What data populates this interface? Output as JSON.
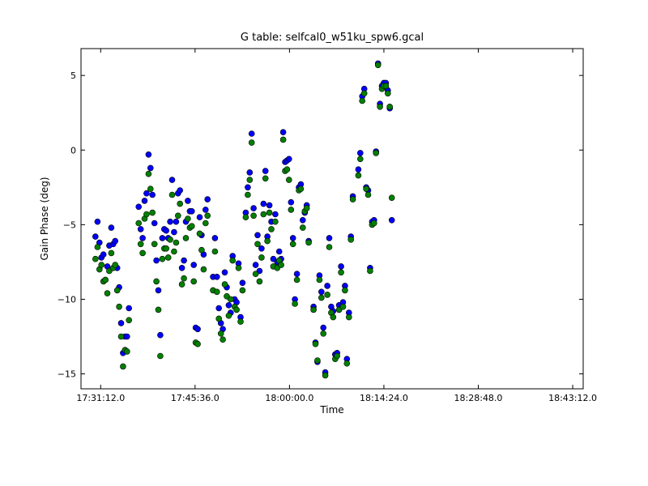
{
  "chart_data": {
    "type": "scatter",
    "title": "G table: selfcal0_w51ku_spw6.gcal",
    "xlabel": "Time",
    "ylabel": "Gain Phase (deg)",
    "xlim": [
      "17:28:12",
      "18:44:48"
    ],
    "ylim": [
      -16,
      6.8
    ],
    "x_ticks": [
      "17:31:12.0",
      "17:45:36.0",
      "18:00:00.0",
      "18:14:24.0",
      "18:28:48.0",
      "18:43:12.0"
    ],
    "y_ticks": [
      5,
      0,
      -5,
      -10,
      -15
    ],
    "grid": false,
    "legend": "none",
    "series": [
      {
        "color": "#0000ff",
        "points": [
          [
            "17:30:24",
            -5.8
          ],
          [
            "17:30:43",
            -4.8
          ],
          [
            "17:31:01",
            -6.2
          ],
          [
            "17:31:19",
            -7.2
          ],
          [
            "17:31:37",
            -7.0
          ],
          [
            "17:31:55",
            -8.7
          ],
          [
            "17:32:13",
            -7.8
          ],
          [
            "17:32:31",
            -6.4
          ],
          [
            "17:32:49",
            -5.2
          ],
          [
            "17:33:07",
            -6.3
          ],
          [
            "17:33:25",
            -6.1
          ],
          [
            "17:33:43",
            -7.9
          ],
          [
            "17:34:01",
            -9.2
          ],
          [
            "17:34:19",
            -11.6
          ],
          [
            "17:34:37",
            -13.6
          ],
          [
            "17:34:55",
            -12.5
          ],
          [
            "17:35:13",
            -12.5
          ],
          [
            "17:35:31",
            -10.6
          ],
          [
            "17:37:00",
            -3.8
          ],
          [
            "17:37:18",
            -5.3
          ],
          [
            "17:37:36",
            -5.9
          ],
          [
            "17:37:54",
            -3.4
          ],
          [
            "17:38:12",
            -2.9
          ],
          [
            "17:38:30",
            -0.3
          ],
          [
            "17:38:48",
            -1.2
          ],
          [
            "17:39:06",
            -3.0
          ],
          [
            "17:39:24",
            -4.9
          ],
          [
            "17:39:42",
            -7.4
          ],
          [
            "17:40:00",
            -9.4
          ],
          [
            "17:40:18",
            -12.4
          ],
          [
            "17:40:36",
            -5.9
          ],
          [
            "17:40:54",
            -5.3
          ],
          [
            "17:41:12",
            -5.4
          ],
          [
            "17:41:30",
            -5.9
          ],
          [
            "17:41:48",
            -4.8
          ],
          [
            "17:42:06",
            -2.0
          ],
          [
            "17:42:24",
            -5.5
          ],
          [
            "17:42:42",
            -4.8
          ],
          [
            "17:43:00",
            -2.9
          ],
          [
            "17:43:18",
            -2.7
          ],
          [
            "17:43:36",
            -7.9
          ],
          [
            "17:43:54",
            -7.4
          ],
          [
            "17:44:12",
            -4.8
          ],
          [
            "17:44:30",
            -3.4
          ],
          [
            "17:44:48",
            -4.1
          ],
          [
            "17:45:06",
            -4.1
          ],
          [
            "17:45:24",
            -7.7
          ],
          [
            "17:45:42",
            -11.9
          ],
          [
            "17:46:00",
            -12.0
          ],
          [
            "17:46:18",
            -4.5
          ],
          [
            "17:46:36",
            -5.7
          ],
          [
            "17:46:54",
            -7.0
          ],
          [
            "17:47:12",
            -4.0
          ],
          [
            "17:47:30",
            -3.3
          ],
          [
            "17:48:20",
            -8.5
          ],
          [
            "17:48:38",
            -5.9
          ],
          [
            "17:48:56",
            -8.5
          ],
          [
            "17:49:14",
            -10.6
          ],
          [
            "17:49:32",
            -11.6
          ],
          [
            "17:49:50",
            -12.0
          ],
          [
            "17:50:08",
            -8.2
          ],
          [
            "17:50:26",
            -9.2
          ],
          [
            "17:50:44",
            -10.4
          ],
          [
            "17:51:02",
            -10.9
          ],
          [
            "17:51:20",
            -7.1
          ],
          [
            "17:51:38",
            -10.0
          ],
          [
            "17:51:56",
            -10.2
          ],
          [
            "17:52:14",
            -7.6
          ],
          [
            "17:52:32",
            -11.2
          ],
          [
            "17:52:50",
            -8.9
          ],
          [
            "17:53:20",
            -4.2
          ],
          [
            "17:53:38",
            -2.5
          ],
          [
            "17:53:56",
            -1.5
          ],
          [
            "17:54:14",
            1.1
          ],
          [
            "17:54:32",
            -3.9
          ],
          [
            "17:54:50",
            -7.7
          ],
          [
            "17:55:08",
            -5.7
          ],
          [
            "17:55:26",
            -8.1
          ],
          [
            "17:55:44",
            -6.6
          ],
          [
            "17:56:02",
            -3.6
          ],
          [
            "17:56:20",
            -1.4
          ],
          [
            "17:56:38",
            -5.8
          ],
          [
            "17:56:56",
            -3.7
          ],
          [
            "17:57:14",
            -4.8
          ],
          [
            "17:57:32",
            -7.3
          ],
          [
            "17:57:50",
            -4.3
          ],
          [
            "17:58:08",
            -7.5
          ],
          [
            "17:58:26",
            -6.8
          ],
          [
            "17:58:44",
            -7.3
          ],
          [
            "17:59:02",
            1.2
          ],
          [
            "17:59:20",
            -0.8
          ],
          [
            "17:59:38",
            -0.7
          ],
          [
            "17:59:56",
            -0.6
          ],
          [
            "18:00:14",
            -3.5
          ],
          [
            "18:00:32",
            -5.9
          ],
          [
            "18:00:50",
            -10.0
          ],
          [
            "18:01:08",
            -8.3
          ],
          [
            "18:01:26",
            -2.5
          ],
          [
            "18:01:44",
            -2.3
          ],
          [
            "18:02:02",
            -4.7
          ],
          [
            "18:02:20",
            -4.2
          ],
          [
            "18:02:38",
            -3.7
          ],
          [
            "18:02:56",
            -6.1
          ],
          [
            "18:03:40",
            -10.5
          ],
          [
            "18:03:58",
            -12.9
          ],
          [
            "18:04:16",
            -14.2
          ],
          [
            "18:04:34",
            -8.4
          ],
          [
            "18:04:52",
            -9.5
          ],
          [
            "18:05:10",
            -11.9
          ],
          [
            "18:05:28",
            -14.9
          ],
          [
            "18:05:46",
            -9.1
          ],
          [
            "18:06:04",
            -5.9
          ],
          [
            "18:06:22",
            -10.5
          ],
          [
            "18:06:40",
            -10.8
          ],
          [
            "18:06:58",
            -13.7
          ],
          [
            "18:07:16",
            -13.6
          ],
          [
            "18:07:34",
            -10.4
          ],
          [
            "18:07:52",
            -7.8
          ],
          [
            "18:08:10",
            -10.2
          ],
          [
            "18:08:28",
            -9.1
          ],
          [
            "18:08:46",
            -14.0
          ],
          [
            "18:09:04",
            -10.9
          ],
          [
            "18:09:22",
            -5.8
          ],
          [
            "18:09:40",
            -3.1
          ],
          [
            "18:10:30",
            -1.3
          ],
          [
            "18:10:48",
            -0.2
          ],
          [
            "18:11:06",
            3.6
          ],
          [
            "18:11:24",
            4.1
          ],
          [
            "18:11:42",
            -2.5
          ],
          [
            "18:12:00",
            -2.7
          ],
          [
            "18:12:18",
            -7.9
          ],
          [
            "18:12:36",
            -4.8
          ],
          [
            "18:12:54",
            -4.7
          ],
          [
            "18:13:12",
            -0.1
          ],
          [
            "18:13:30",
            5.8
          ],
          [
            "18:13:48",
            3.1
          ],
          [
            "18:14:06",
            4.3
          ],
          [
            "18:14:24",
            4.5
          ],
          [
            "18:14:42",
            4.5
          ],
          [
            "18:15:00",
            4.0
          ],
          [
            "18:15:18",
            2.8
          ],
          [
            "18:15:36",
            -4.7
          ]
        ]
      },
      {
        "color": "#008000",
        "points": [
          [
            "17:30:24",
            -7.3
          ],
          [
            "17:30:43",
            -6.5
          ],
          [
            "17:31:01",
            -8.0
          ],
          [
            "17:31:19",
            -7.7
          ],
          [
            "17:31:37",
            -8.8
          ],
          [
            "17:31:55",
            -8.7
          ],
          [
            "17:32:13",
            -9.6
          ],
          [
            "17:32:31",
            -8.1
          ],
          [
            "17:32:49",
            -6.9
          ],
          [
            "17:33:07",
            -7.9
          ],
          [
            "17:33:25",
            -7.7
          ],
          [
            "17:33:43",
            -9.4
          ],
          [
            "17:34:01",
            -10.5
          ],
          [
            "17:34:19",
            -12.5
          ],
          [
            "17:34:37",
            -14.5
          ],
          [
            "17:34:55",
            -13.4
          ],
          [
            "17:35:13",
            -13.5
          ],
          [
            "17:35:31",
            -11.4
          ],
          [
            "17:37:00",
            -4.9
          ],
          [
            "17:37:18",
            -6.3
          ],
          [
            "17:37:36",
            -6.9
          ],
          [
            "17:37:54",
            -4.6
          ],
          [
            "17:38:12",
            -4.3
          ],
          [
            "17:38:30",
            -1.6
          ],
          [
            "17:38:48",
            -2.6
          ],
          [
            "17:39:06",
            -4.2
          ],
          [
            "17:39:24",
            -6.3
          ],
          [
            "17:39:42",
            -8.8
          ],
          [
            "17:40:00",
            -10.7
          ],
          [
            "17:40:18",
            -13.8
          ],
          [
            "17:40:36",
            -7.3
          ],
          [
            "17:40:54",
            -6.6
          ],
          [
            "17:41:12",
            -6.6
          ],
          [
            "17:41:30",
            -7.2
          ],
          [
            "17:41:48",
            -6.0
          ],
          [
            "17:42:06",
            -3.0
          ],
          [
            "17:42:24",
            -6.8
          ],
          [
            "17:42:42",
            -6.2
          ],
          [
            "17:43:00",
            -4.4
          ],
          [
            "17:43:18",
            -3.6
          ],
          [
            "17:43:36",
            -9.0
          ],
          [
            "17:43:54",
            -8.6
          ],
          [
            "17:44:12",
            -5.9
          ],
          [
            "17:44:30",
            -4.6
          ],
          [
            "17:44:48",
            -5.2
          ],
          [
            "17:45:06",
            -5.1
          ],
          [
            "17:45:24",
            -8.8
          ],
          [
            "17:45:42",
            -12.9
          ],
          [
            "17:46:00",
            -13.0
          ],
          [
            "17:46:18",
            -5.6
          ],
          [
            "17:46:36",
            -6.7
          ],
          [
            "17:46:54",
            -8.0
          ],
          [
            "17:47:12",
            -4.9
          ],
          [
            "17:47:30",
            -4.4
          ],
          [
            "17:48:20",
            -9.4
          ],
          [
            "17:48:38",
            -6.8
          ],
          [
            "17:48:56",
            -9.5
          ],
          [
            "17:49:14",
            -11.3
          ],
          [
            "17:49:32",
            -12.3
          ],
          [
            "17:49:50",
            -12.7
          ],
          [
            "17:50:08",
            -9.0
          ],
          [
            "17:50:26",
            -9.8
          ],
          [
            "17:50:44",
            -11.1
          ],
          [
            "17:51:02",
            -10.0
          ],
          [
            "17:51:20",
            -7.4
          ],
          [
            "17:51:38",
            -10.5
          ],
          [
            "17:51:56",
            -10.7
          ],
          [
            "17:52:14",
            -7.9
          ],
          [
            "17:52:32",
            -11.5
          ],
          [
            "17:52:50",
            -9.4
          ],
          [
            "17:53:20",
            -4.5
          ],
          [
            "17:53:38",
            -3.0
          ],
          [
            "17:53:56",
            -2.0
          ],
          [
            "17:54:14",
            0.5
          ],
          [
            "17:54:32",
            -4.4
          ],
          [
            "17:54:50",
            -8.3
          ],
          [
            "17:55:08",
            -6.3
          ],
          [
            "17:55:26",
            -8.8
          ],
          [
            "17:55:44",
            -7.2
          ],
          [
            "17:56:02",
            -4.3
          ],
          [
            "17:56:20",
            -1.9
          ],
          [
            "17:56:38",
            -6.1
          ],
          [
            "17:56:56",
            -4.2
          ],
          [
            "17:57:14",
            -5.3
          ],
          [
            "17:57:32",
            -7.8
          ],
          [
            "17:57:50",
            -4.8
          ],
          [
            "17:58:08",
            -7.9
          ],
          [
            "17:58:26",
            -7.4
          ],
          [
            "17:58:44",
            -7.7
          ],
          [
            "17:59:02",
            0.7
          ],
          [
            "17:59:20",
            -1.4
          ],
          [
            "17:59:38",
            -1.3
          ],
          [
            "17:59:56",
            -2.0
          ],
          [
            "18:00:14",
            -4.0
          ],
          [
            "18:00:32",
            -6.3
          ],
          [
            "18:00:50",
            -10.3
          ],
          [
            "18:01:08",
            -8.7
          ],
          [
            "18:01:26",
            -2.7
          ],
          [
            "18:01:44",
            -2.6
          ],
          [
            "18:02:02",
            -5.2
          ],
          [
            "18:02:20",
            -4.1
          ],
          [
            "18:02:38",
            -3.9
          ],
          [
            "18:02:56",
            -6.2
          ],
          [
            "18:03:40",
            -10.7
          ],
          [
            "18:03:58",
            -13.0
          ],
          [
            "18:04:16",
            -14.1
          ],
          [
            "18:04:34",
            -8.7
          ],
          [
            "18:04:52",
            -9.9
          ],
          [
            "18:05:10",
            -12.3
          ],
          [
            "18:05:28",
            -15.1
          ],
          [
            "18:05:46",
            -9.7
          ],
          [
            "18:06:04",
            -6.5
          ],
          [
            "18:06:22",
            -10.9
          ],
          [
            "18:06:40",
            -11.2
          ],
          [
            "18:06:58",
            -14.0
          ],
          [
            "18:07:16",
            -13.8
          ],
          [
            "18:07:34",
            -10.7
          ],
          [
            "18:07:52",
            -8.2
          ],
          [
            "18:08:10",
            -10.5
          ],
          [
            "18:08:28",
            -9.4
          ],
          [
            "18:08:46",
            -14.3
          ],
          [
            "18:09:04",
            -11.2
          ],
          [
            "18:09:22",
            -6.0
          ],
          [
            "18:09:40",
            -3.3
          ],
          [
            "18:10:30",
            -1.7
          ],
          [
            "18:10:48",
            -0.6
          ],
          [
            "18:11:06",
            3.3
          ],
          [
            "18:11:24",
            3.8
          ],
          [
            "18:11:42",
            -2.6
          ],
          [
            "18:12:00",
            -3.0
          ],
          [
            "18:12:18",
            -8.1
          ],
          [
            "18:12:36",
            -5.0
          ],
          [
            "18:12:54",
            -4.9
          ],
          [
            "18:13:12",
            -0.2
          ],
          [
            "18:13:30",
            5.7
          ],
          [
            "18:13:48",
            2.9
          ],
          [
            "18:14:06",
            4.1
          ],
          [
            "18:14:24",
            4.3
          ],
          [
            "18:14:42",
            4.3
          ],
          [
            "18:15:00",
            3.8
          ],
          [
            "18:15:18",
            2.9
          ],
          [
            "18:15:36",
            -3.2
          ]
        ]
      }
    ]
  }
}
